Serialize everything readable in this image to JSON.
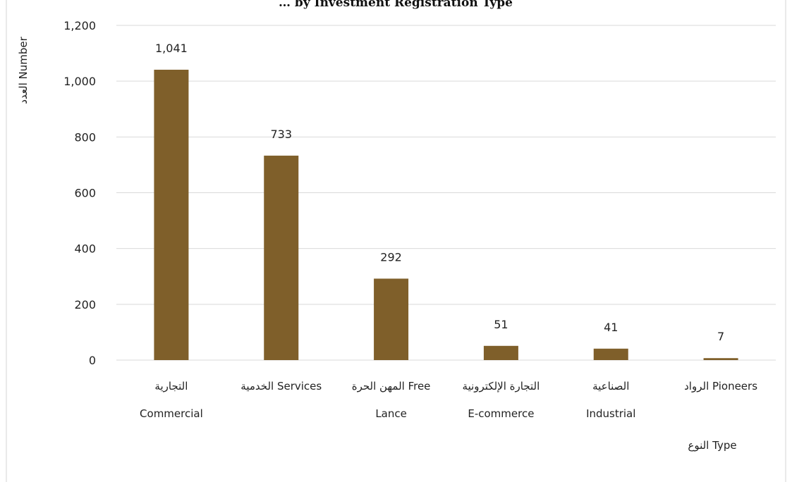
{
  "chart_data": {
    "type": "bar",
    "title": "… by Investment Registration Type",
    "categories": [
      [
        "التجارية",
        "Commercial"
      ],
      [
        "الخدمية Services"
      ],
      [
        "المهن الحرة   Free",
        "Lance"
      ],
      [
        "التجارة الإلكترونية",
        "E-commerce"
      ],
      [
        "الصناعية",
        "Industrial"
      ],
      [
        "الرواد Pioneers"
      ]
    ],
    "values": [
      1041,
      733,
      292,
      51,
      41,
      7
    ],
    "value_labels": [
      "1,041",
      "733",
      "292",
      "51",
      "41",
      "7"
    ],
    "ylim": [
      0,
      1200
    ],
    "yticks": [
      0,
      200,
      400,
      600,
      800,
      1000,
      1200
    ],
    "ytick_labels": [
      "0",
      "200",
      "400",
      "600",
      "800",
      "1,000",
      "1,200"
    ],
    "ylabel": "العدد Number",
    "xlabel": "النوع Type",
    "grid": true,
    "bar_color": "#7f5f2a"
  }
}
